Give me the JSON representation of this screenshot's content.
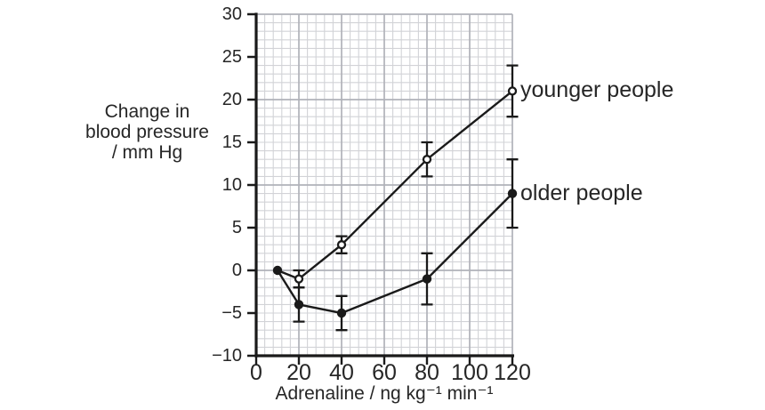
{
  "chart_data": {
    "type": "line",
    "title": "",
    "xlabel": "Adrenaline / ng kg⁻¹ min⁻¹",
    "ylabel": "Change in blood pressure / mm Hg",
    "ylabel_lines": [
      "Change in",
      "blood pressure",
      "/ mm Hg"
    ],
    "xlim": [
      0,
      120
    ],
    "ylim": [
      -10,
      30
    ],
    "x_tick_values": [
      0,
      20,
      40,
      60,
      80,
      100,
      120
    ],
    "x_tick_labels": [
      "0",
      "20",
      "40",
      "60",
      "80",
      "100",
      "120"
    ],
    "y_tick_values": [
      30,
      25,
      20,
      15,
      10,
      5,
      0,
      -5,
      -10
    ],
    "y_tick_labels": [
      "30",
      "25",
      "20",
      "15",
      "10",
      "5",
      "0",
      "−5",
      "−10"
    ],
    "grid": {
      "minor_x_units": 4,
      "minor_y_units": 1,
      "major_x_units": 20,
      "major_y_units": 10,
      "style": "graph-paper"
    },
    "legend_position": "labels-right-of-last-point",
    "series": [
      {
        "name": "younger people",
        "marker": "open-circle",
        "points": [
          {
            "x": 10,
            "y": 0,
            "marker": "none"
          },
          {
            "x": 20,
            "y": -1,
            "err_low": -2,
            "err_high": 0
          },
          {
            "x": 40,
            "y": 3,
            "err_low": 2,
            "err_high": 4
          },
          {
            "x": 80,
            "y": 13,
            "err_low": 11,
            "err_high": 15
          },
          {
            "x": 120,
            "y": 21,
            "err_low": 18,
            "err_high": 24
          }
        ]
      },
      {
        "name": "older people",
        "marker": "filled-circle",
        "points": [
          {
            "x": 10,
            "y": 0
          },
          {
            "x": 20,
            "y": -4,
            "err_low": -6,
            "err_high": -2
          },
          {
            "x": 40,
            "y": -5,
            "err_low": -7,
            "err_high": -3
          },
          {
            "x": 80,
            "y": -1,
            "err_low": -4,
            "err_high": 2
          },
          {
            "x": 120,
            "y": 9,
            "err_low": 5,
            "err_high": 13
          }
        ]
      }
    ],
    "colors": {
      "stroke": "#1a1a1a",
      "axis": "#1a1a1a",
      "grid_minor": "#d2d3d7",
      "grid_major": "#b1b2b9",
      "text": "#262626",
      "background": "#ffffff"
    }
  }
}
